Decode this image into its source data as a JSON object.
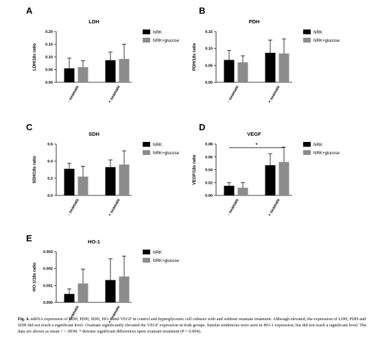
{
  "figure": {
    "caption_lead": "Fig. 4.",
    "caption_text": "mRNA expression of LDH, PDH, SDH, HO-1 and VEGF in control and hyperglycemic cell cultures with and without oxamate treatment. Although elevated, the expression of LDH, PDH and SDH did not reach a significant level. Oxamate significantly elevated the VEGF expression in both groups. Similar tendencies were seen in HO-1 expression, but did not reach a significant level. The data are shown as mean + / -SEM. * denotes significant differences upon oxamate treatment (P = 0.004).",
    "colors": {
      "NRK": "#000000",
      "NRK+glucose": "#8c8c8c"
    }
  },
  "chart_data": [
    {
      "panel": "A",
      "type": "bar",
      "title": "LDH",
      "ylabel": "LDH/18s ratio",
      "categories": [
        "- oxamate",
        "+ oxamate"
      ],
      "ylim": [
        0,
        0.2
      ],
      "yticks": [
        "0.00",
        "0.05",
        "0.10",
        "0.15",
        "0.20"
      ],
      "tick_values": [
        0,
        0.05,
        0.1,
        0.15,
        0.2
      ],
      "legend": "right",
      "series": [
        {
          "name": "NRK",
          "values": [
            0.055,
            0.087
          ],
          "errors": [
            0.04,
            0.032
          ]
        },
        {
          "name": "NRK+glucose",
          "values": [
            0.06,
            0.092
          ],
          "errors": [
            0.025,
            0.058
          ]
        }
      ],
      "significance": null
    },
    {
      "panel": "B",
      "type": "bar",
      "title": "PDH",
      "ylabel": "PDH/18s ratio",
      "categories": [
        "- oxamate",
        "+ oxamate"
      ],
      "ylim": [
        0,
        0.15
      ],
      "yticks": [
        "0.00",
        "0.05",
        "0.10",
        "0.15"
      ],
      "tick_values": [
        0,
        0.05,
        0.1,
        0.15
      ],
      "legend": "right",
      "series": [
        {
          "name": "NRK",
          "values": [
            0.066,
            0.087
          ],
          "errors": [
            0.028,
            0.038
          ]
        },
        {
          "name": "NRK+glucose",
          "values": [
            0.059,
            0.085
          ],
          "errors": [
            0.019,
            0.043
          ]
        }
      ],
      "significance": null
    },
    {
      "panel": "C",
      "type": "bar",
      "title": "SDH",
      "ylabel": "SDH/18s ratio",
      "categories": [
        "- oxamate",
        "+ oxamate"
      ],
      "ylim": [
        0,
        0.6
      ],
      "yticks": [
        "0.0",
        "0.2",
        "0.4",
        "0.6"
      ],
      "tick_values": [
        0,
        0.2,
        0.4,
        0.6
      ],
      "legend": "right",
      "series": [
        {
          "name": "NRK",
          "values": [
            0.31,
            0.33
          ],
          "errors": [
            0.065,
            0.085
          ]
        },
        {
          "name": "NRK+glucose",
          "values": [
            0.22,
            0.36
          ],
          "errors": [
            0.12,
            0.16
          ]
        }
      ],
      "significance": null
    },
    {
      "panel": "D",
      "type": "bar",
      "title": "VEGF",
      "ylabel": "VEGF/18s ratio",
      "categories": [
        "- oxamate",
        "+ oxamate"
      ],
      "ylim": [
        0,
        0.08
      ],
      "yticks": [
        "0.00",
        "0.02",
        "0.04",
        "0.06",
        "0.08"
      ],
      "tick_values": [
        0,
        0.02,
        0.04,
        0.06,
        0.08
      ],
      "legend": "right",
      "series": [
        {
          "name": "NRK",
          "values": [
            0.015,
            0.047
          ],
          "errors": [
            0.005,
            0.018
          ]
        },
        {
          "name": "NRK+glucose",
          "values": [
            0.012,
            0.052
          ],
          "errors": [
            0.008,
            0.023
          ]
        }
      ],
      "significance": {
        "label": "*",
        "y": 0.074
      }
    },
    {
      "panel": "E",
      "type": "bar",
      "title": "HO-1",
      "ylabel": "HO-1/18s ratio",
      "categories": [
        "- oxamate",
        "+ oxamate"
      ],
      "ylim": [
        0,
        0.003
      ],
      "yticks": [
        "0.000",
        "0.001",
        "0.002",
        "0.003"
      ],
      "tick_values": [
        0,
        0.001,
        0.002,
        0.003
      ],
      "legend": "right",
      "series": [
        {
          "name": "NRK",
          "values": [
            0.0005,
            0.00132
          ],
          "errors": [
            0.0003,
            0.00125
          ]
        },
        {
          "name": "NRK+glucose",
          "values": [
            0.00112,
            0.00153
          ],
          "errors": [
            0.00085,
            0.0012
          ]
        }
      ],
      "significance": null
    }
  ]
}
